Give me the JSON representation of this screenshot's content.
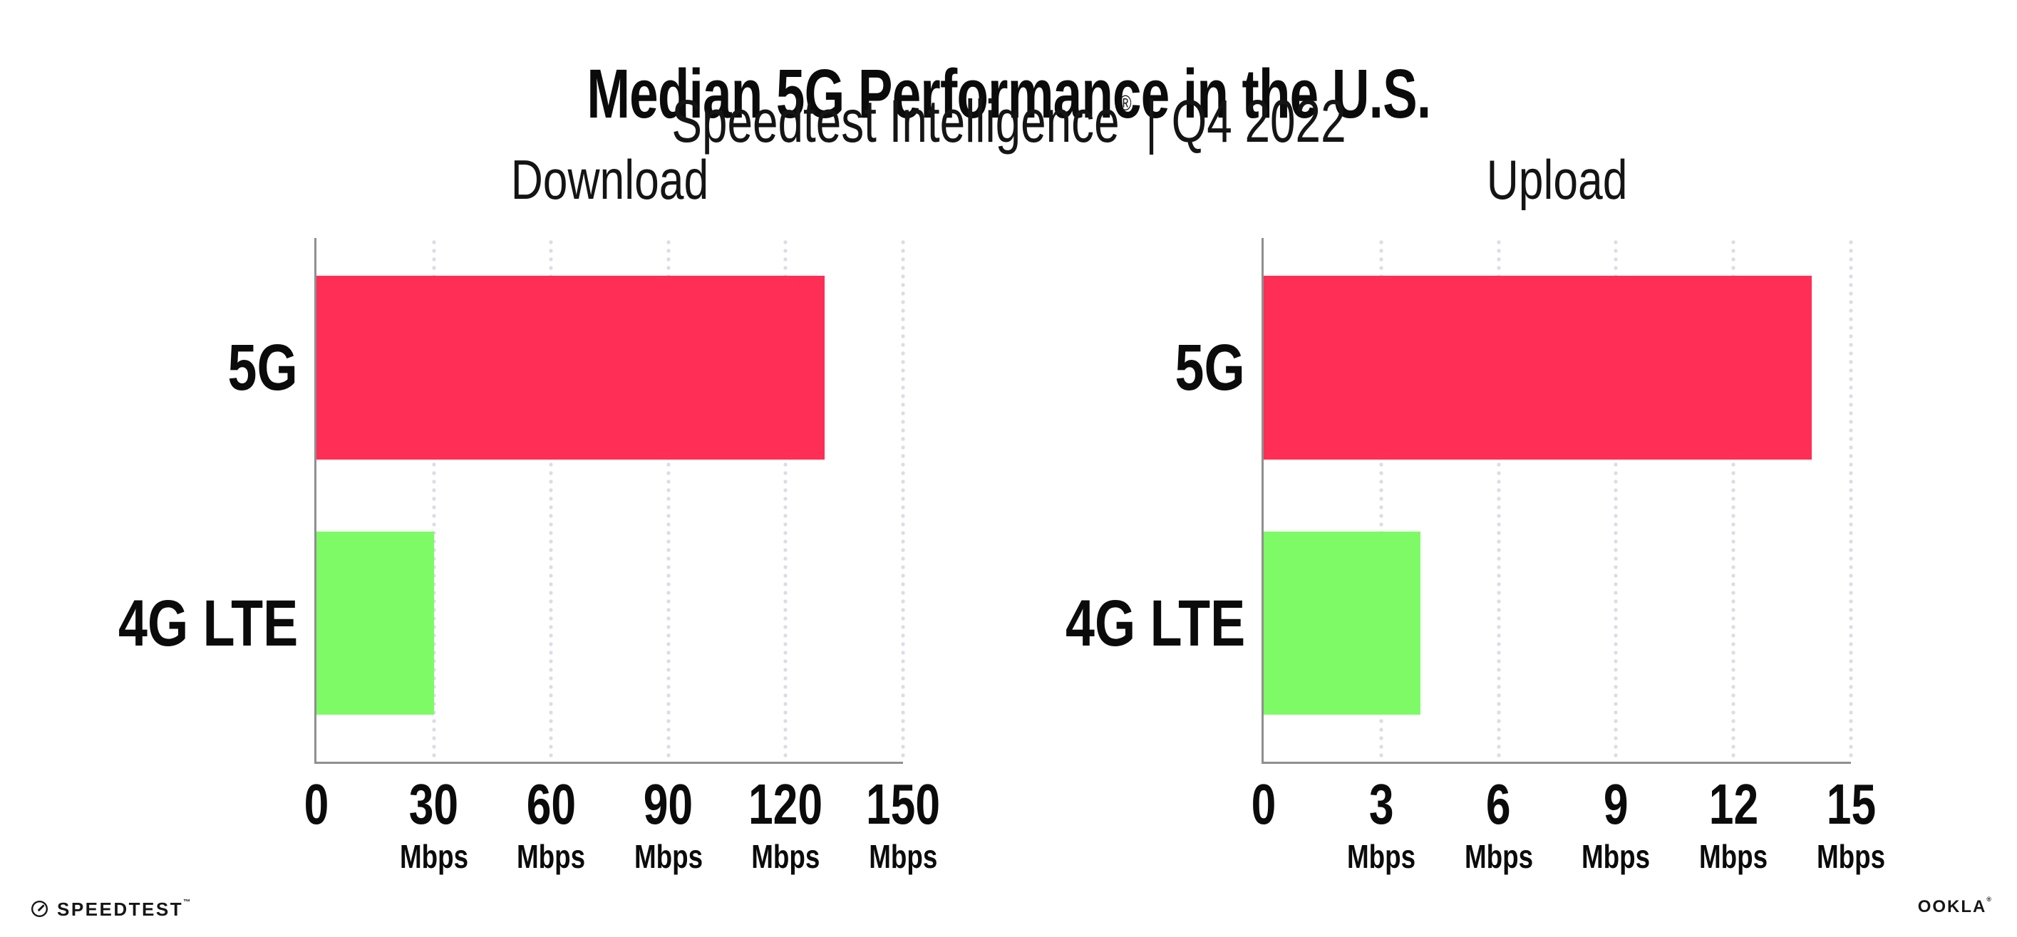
{
  "header": {
    "title": "Median 5G Performance in the U.S.",
    "subtitle_brand": "Speedtest Intelligence",
    "subtitle_mark": "®",
    "subtitle_sep": "|",
    "subtitle_period": "Q4 2022"
  },
  "chart_data": [
    {
      "type": "bar",
      "orientation": "horizontal",
      "title": "Download",
      "categories": [
        "5G",
        "4G LTE"
      ],
      "values": [
        130,
        30
      ],
      "unit": "Mbps",
      "xlim": [
        0,
        150
      ],
      "ticks": [
        0,
        30,
        60,
        90,
        120,
        150
      ],
      "grid": "dotted-vertical",
      "legend": "none",
      "bar_colors": [
        "#FF2E56",
        "#7EFA66"
      ]
    },
    {
      "type": "bar",
      "orientation": "horizontal",
      "title": "Upload",
      "categories": [
        "5G",
        "4G LTE"
      ],
      "values": [
        14,
        4
      ],
      "unit": "Mbps",
      "xlim": [
        0,
        15
      ],
      "ticks": [
        0,
        3,
        6,
        9,
        12,
        15
      ],
      "grid": "dotted-vertical",
      "legend": "none",
      "bar_colors": [
        "#FF2E56",
        "#7EFA66"
      ]
    }
  ],
  "colors": {
    "bar_5g": "#FF2E56",
    "bar_4g_lte": "#7EFA66",
    "axis": "#8F8F8F",
    "gridline": "#DCDCE6",
    "text": "#0B0B0B",
    "background": "#FFFFFF"
  },
  "footer": {
    "speedtest_label": "SPEEDTEST",
    "speedtest_mark": "™",
    "ookla_label": "OOKLA",
    "ookla_mark": "®"
  }
}
